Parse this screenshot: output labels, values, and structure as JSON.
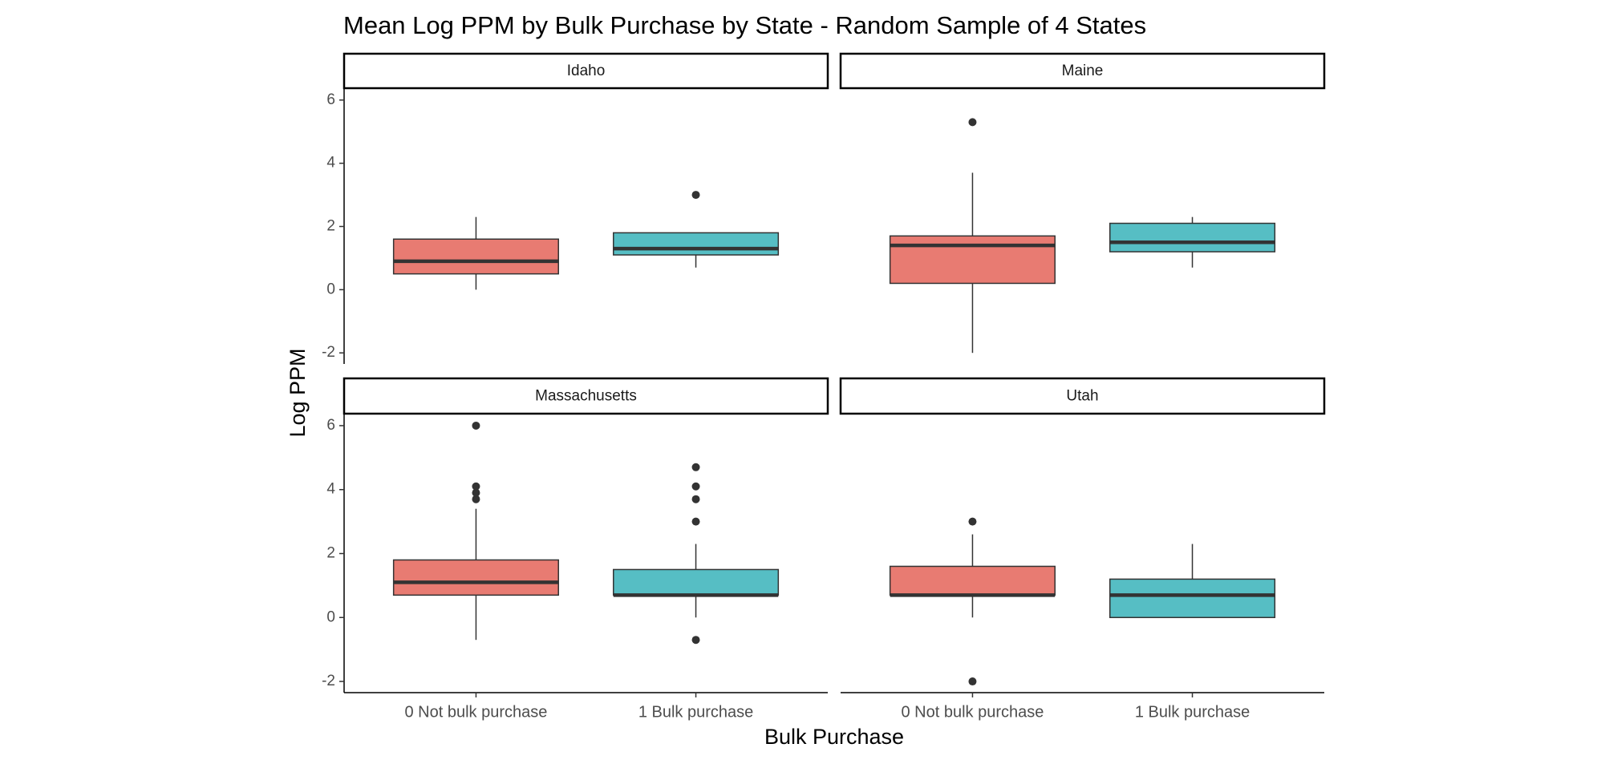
{
  "chart_data": {
    "type": "box",
    "title": "Mean Log PPM by Bulk Purchase by State - Random Sample of 4 States",
    "x_label": "Bulk Purchase",
    "y_label": "Log PPM",
    "categories": [
      "0 Not bulk purchase",
      "1 Bulk purchase"
    ],
    "colors": [
      "#e87b72",
      "#56bec4"
    ],
    "ylim": [
      -2.35,
      6.35
    ],
    "yticks": [
      -2,
      0,
      2,
      4,
      6
    ],
    "facets": [
      {
        "name": "Idaho",
        "boxes": [
          {
            "min": 0,
            "q1": 0.5,
            "median": 0.9,
            "q3": 1.6,
            "max": 2.3,
            "outliers": []
          },
          {
            "min": 0.7,
            "q1": 1.1,
            "median": 1.3,
            "q3": 1.8,
            "max": 1.8,
            "outliers": [
              3.0
            ]
          }
        ]
      },
      {
        "name": "Maine",
        "boxes": [
          {
            "min": -2.0,
            "q1": 0.2,
            "median": 1.4,
            "q3": 1.7,
            "max": 3.7,
            "outliers": [
              5.3
            ]
          },
          {
            "min": 0.7,
            "q1": 1.2,
            "median": 1.5,
            "q3": 2.1,
            "max": 2.3,
            "outliers": []
          }
        ]
      },
      {
        "name": "Massachusetts",
        "boxes": [
          {
            "min": -0.7,
            "q1": 0.7,
            "median": 1.1,
            "q3": 1.8,
            "max": 3.4,
            "outliers": [
              3.7,
              3.9,
              4.1,
              6.0
            ]
          },
          {
            "min": 0,
            "q1": 0.7,
            "median": 0.7,
            "q3": 1.5,
            "max": 2.3,
            "outliers": [
              -0.7,
              3.0,
              3.7,
              4.1,
              4.7
            ]
          }
        ]
      },
      {
        "name": "Utah",
        "boxes": [
          {
            "min": 0,
            "q1": 0.7,
            "median": 0.7,
            "q3": 1.6,
            "max": 2.6,
            "outliers": [
              3.0,
              -2.0
            ]
          },
          {
            "min": 0,
            "q1": 0,
            "median": 0.7,
            "q3": 1.2,
            "max": 2.3,
            "outliers": []
          }
        ]
      }
    ]
  }
}
